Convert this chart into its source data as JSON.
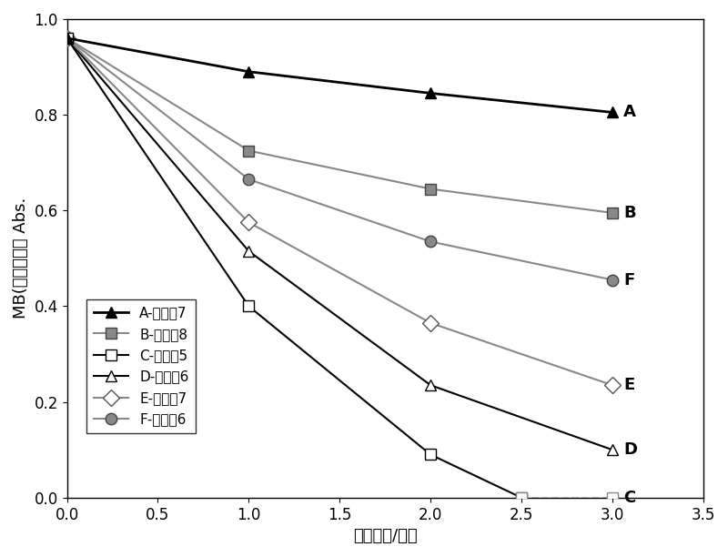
{
  "series": [
    {
      "label": "A-对比外7",
      "x": [
        0,
        1,
        2,
        3
      ],
      "y": [
        0.96,
        0.89,
        0.845,
        0.805
      ],
      "color": "#000000",
      "linestyle": "-",
      "marker": "^",
      "markersize": 9,
      "markerfacecolor": "#000000",
      "markeredgecolor": "#000000",
      "linewidth": 2.0,
      "end_label": "A",
      "zorder": 5
    },
    {
      "label": "B-对比外8",
      "x": [
        0,
        1,
        2,
        3
      ],
      "y": [
        0.96,
        0.725,
        0.645,
        0.595
      ],
      "color": "#888888",
      "linestyle": "-",
      "marker": "s",
      "markersize": 9,
      "markerfacecolor": "#888888",
      "markeredgecolor": "#444444",
      "linewidth": 1.5,
      "end_label": "B",
      "zorder": 4
    },
    {
      "label": "C-实施外5",
      "x": [
        0,
        1,
        2,
        2.5,
        3
      ],
      "y": [
        0.96,
        0.4,
        0.09,
        0.0,
        0.0
      ],
      "color": "#000000",
      "linestyle": "-",
      "marker": "s",
      "markersize": 9,
      "markerfacecolor": "#ffffff",
      "markeredgecolor": "#000000",
      "linewidth": 1.5,
      "end_label": "C",
      "zorder": 4,
      "dashed_from": 2.5
    },
    {
      "label": "D-实施外6",
      "x": [
        0,
        1,
        2,
        3
      ],
      "y": [
        0.96,
        0.515,
        0.235,
        0.1
      ],
      "color": "#000000",
      "linestyle": "-",
      "marker": "^",
      "markersize": 9,
      "markerfacecolor": "#ffffff",
      "markeredgecolor": "#000000",
      "linewidth": 1.5,
      "end_label": "D",
      "zorder": 3
    },
    {
      "label": "E-实施外7",
      "x": [
        0,
        1,
        2,
        3
      ],
      "y": [
        0.96,
        0.575,
        0.365,
        0.235
      ],
      "color": "#888888",
      "linestyle": "-",
      "marker": "D",
      "markersize": 9,
      "markerfacecolor": "#ffffff",
      "markeredgecolor": "#555555",
      "linewidth": 1.5,
      "end_label": "E",
      "zorder": 3
    },
    {
      "label": "F-对比外6",
      "x": [
        0,
        1,
        2,
        3
      ],
      "y": [
        0.96,
        0.665,
        0.535,
        0.455
      ],
      "color": "#888888",
      "linestyle": "-",
      "marker": "o",
      "markersize": 9,
      "markerfacecolor": "#888888",
      "markeredgecolor": "#444444",
      "linewidth": 1.5,
      "end_label": "F",
      "zorder": 3
    }
  ],
  "xlabel": "光照时间/小时",
  "ylabel": "MB(亚甲基蓝） Abs.",
  "xlim": [
    0,
    3.5
  ],
  "ylim": [
    0,
    1.0
  ],
  "xticks": [
    0,
    0.5,
    1.0,
    1.5,
    2.0,
    2.5,
    3.0,
    3.5
  ],
  "yticks": [
    0,
    0.2,
    0.4,
    0.6,
    0.8,
    1.0
  ],
  "font_size": 13,
  "tick_font_size": 12,
  "label_font_size": 13,
  "background_color": "#ffffff",
  "legend_entries": [
    {
      "label": "A-对比外7",
      "marker": "^",
      "mfc": "#000000",
      "mec": "#000000",
      "color": "#000000",
      "ls": "-",
      "lw": 2.0
    },
    {
      "label": "B-对比外8",
      "marker": "s",
      "mfc": "#888888",
      "mec": "#444444",
      "color": "#888888",
      "ls": "-",
      "lw": 1.5
    },
    {
      "label": "C-实施外5",
      "marker": "s",
      "mfc": "#ffffff",
      "mec": "#000000",
      "color": "#000000",
      "ls": "-",
      "lw": 1.5
    },
    {
      "label": "D-实施外6",
      "marker": "^",
      "mfc": "#ffffff",
      "mec": "#000000",
      "color": "#000000",
      "ls": "-",
      "lw": 1.5
    },
    {
      "label": "E-实施外7",
      "marker": "D",
      "mfc": "#ffffff",
      "mec": "#555555",
      "color": "#888888",
      "ls": "-",
      "lw": 1.5
    },
    {
      "label": "F-对比外6",
      "marker": "o",
      "mfc": "#888888",
      "mec": "#444444",
      "color": "#888888",
      "ls": "-",
      "lw": 1.5
    }
  ]
}
